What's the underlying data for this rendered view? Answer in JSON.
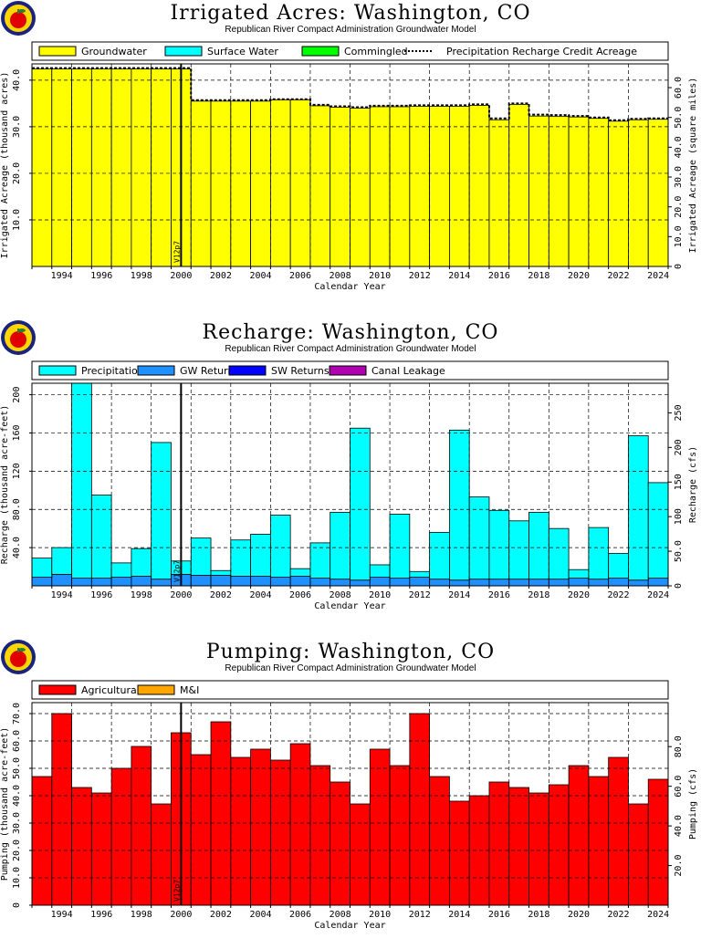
{
  "colors": {
    "groundwater": "#ffff00",
    "surface_water": "#00ffff",
    "commingled": "#00ff00",
    "precipitation": "#00ffff",
    "gw_returns": "#1e90ff",
    "sw_returns": "#0000ff",
    "canal_leakage": "#b000b0",
    "agricultural": "#ff0000",
    "mi": "#ffa500"
  },
  "logo_icon": "apple-seal-icon",
  "chart_data": [
    {
      "type": "bar",
      "title": "Irrigated Acres: Washington, CO",
      "subtitle": "Republican River Compact Administration Groundwater Model",
      "xlabel": "Calendar Year",
      "ylabel": "Irrigated Acreage (thousand acres)",
      "y2label": "Irrigated Acreage (square miles)",
      "x_ticks": [
        "1994",
        "1996",
        "1998",
        "2000",
        "2002",
        "2004",
        "2006",
        "2008",
        "2010",
        "2012",
        "2014",
        "2016",
        "2018",
        "2020",
        "2022",
        "2024"
      ],
      "ylim": [
        0,
        43.5
      ],
      "y_ticks": [
        "10.0",
        "20.0",
        "30.0",
        "40.0"
      ],
      "y2_ticks": [
        "0",
        "10.0",
        "20.0",
        "30.0",
        "40.0",
        "50.0",
        "60.0"
      ],
      "y2_scale": 1.5625,
      "grid": true,
      "legend": [
        "Groundwater",
        "Surface Water",
        "Commingled",
        "Precipitation Recharge Credit Acreage"
      ],
      "version_label": "V12p7",
      "version_year": 2000.5,
      "x_start": 1993,
      "series": [
        {
          "name": "Groundwater",
          "values": [
            42.4,
            42.4,
            42.4,
            42.4,
            42.4,
            42.4,
            42.4,
            42.4,
            35.5,
            35.5,
            35.5,
            35.5,
            35.8,
            35.8,
            34.5,
            34.2,
            34.0,
            34.3,
            34.3,
            34.4,
            34.4,
            34.4,
            34.6,
            31.5,
            34.8,
            32.3,
            32.2,
            32.1,
            31.8,
            31.2,
            31.5,
            31.6
          ]
        }
      ],
      "line": {
        "name": "Precipitation Recharge Credit Acreage",
        "values": [
          42.6,
          42.6,
          42.6,
          42.6,
          42.6,
          42.6,
          42.6,
          42.6,
          35.7,
          35.7,
          35.7,
          35.7,
          35.9,
          35.9,
          34.7,
          34.4,
          34.2,
          34.5,
          34.5,
          34.6,
          34.6,
          34.6,
          34.8,
          31.8,
          35.0,
          32.6,
          32.5,
          32.3,
          32.0,
          31.4,
          31.7,
          31.8
        ]
      }
    },
    {
      "type": "bar",
      "title": "Recharge: Washington, CO",
      "subtitle": "Republican River Compact Administration Groundwater Model",
      "xlabel": "Calendar Year",
      "ylabel": "Recharge (thousand acre-feet)",
      "y2label": "Recharge (cfs)",
      "x_ticks": [
        "1994",
        "1996",
        "1998",
        "2000",
        "2002",
        "2004",
        "2006",
        "2008",
        "2010",
        "2012",
        "2014",
        "2016",
        "2018",
        "2020",
        "2022",
        "2024"
      ],
      "ylim": [
        0,
        212
      ],
      "y_ticks": [
        "40.0",
        "80.0",
        "120",
        "160",
        "200"
      ],
      "y_tick_values": [
        40,
        80,
        120,
        160,
        200
      ],
      "y2_ticks": [
        "0",
        "50.0",
        "100",
        "150",
        "200",
        "250"
      ],
      "y2_tick_values": [
        0,
        50,
        100,
        150,
        200,
        250
      ],
      "y2_scale": 1.381,
      "grid": true,
      "legend": [
        "Precipitation",
        "GW Returns",
        "SW Returns",
        "Canal Leakage"
      ],
      "version_label": "V12p7",
      "version_year": 2000.5,
      "x_start": 1993,
      "series": [
        {
          "name": "GW Returns",
          "values": [
            9,
            12,
            8,
            8,
            9,
            10,
            7,
            12,
            11,
            11,
            10,
            10,
            9,
            10,
            8,
            7,
            6,
            9,
            8,
            9,
            7,
            6,
            7,
            7,
            7,
            7,
            7,
            8,
            7,
            8,
            6,
            8
          ]
        },
        {
          "name": "Precipitation",
          "values": [
            20,
            28,
            204,
            87,
            15,
            29,
            143,
            14,
            39,
            5,
            38,
            44,
            65,
            8,
            37,
            70,
            159,
            13,
            67,
            6,
            49,
            157,
            86,
            72,
            61,
            70,
            53,
            9,
            54,
            26,
            151,
            100
          ]
        }
      ]
    },
    {
      "type": "bar",
      "title": "Pumping: Washington, CO",
      "subtitle": "Republican River Compact Administration Groundwater Model",
      "xlabel": "Calendar Year",
      "ylabel": "Pumping (thousand acre-feet)",
      "y2label": "Pumping (cfs)",
      "x_ticks": [
        "1994",
        "1996",
        "1998",
        "2000",
        "2002",
        "2004",
        "2006",
        "2008",
        "2010",
        "2012",
        "2014",
        "2016",
        "2018",
        "2020",
        "2022",
        "2024"
      ],
      "ylim": [
        0,
        74
      ],
      "y_ticks": [
        "0",
        "10.0",
        "20.0",
        "30.0",
        "40.0",
        "50.0",
        "60.0",
        "70.0"
      ],
      "y_tick_values": [
        0,
        10,
        20,
        30,
        40,
        50,
        60,
        70
      ],
      "y2_ticks": [
        "20.0",
        "40.0",
        "60.0",
        "80.0"
      ],
      "y2_tick_values": [
        20,
        40,
        60,
        80
      ],
      "y2_scale": 1.381,
      "grid": true,
      "legend": [
        "Agricultural",
        "M&I"
      ],
      "version_label": "V12p7",
      "version_year": 2000.5,
      "x_start": 1993,
      "series": [
        {
          "name": "Agricultural",
          "values": [
            47,
            70,
            43,
            41,
            50,
            58,
            37,
            63,
            55,
            67,
            54,
            57,
            53,
            59,
            51,
            45,
            37,
            57,
            51,
            70,
            47,
            38,
            40,
            45,
            43,
            41,
            44,
            51,
            47,
            54,
            37,
            46
          ]
        }
      ]
    }
  ]
}
